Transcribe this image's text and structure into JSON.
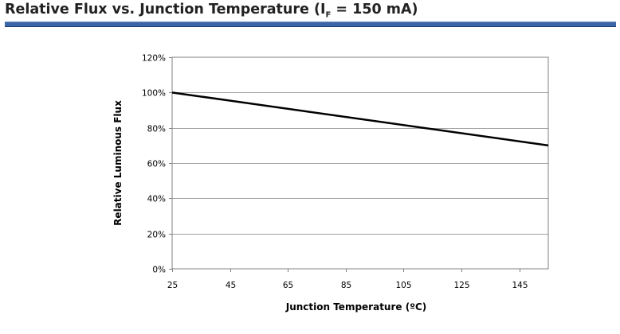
{
  "header": {
    "title_prefix": "Relative Flux vs. Junction Temperature (I",
    "title_subscript": "F",
    "title_suffix": " = 150 mA)",
    "rule_color": "#3b66a8"
  },
  "chart_data": {
    "type": "line",
    "title": "Relative Flux vs. Junction Temperature (IF = 150 mA)",
    "xlabel": "Junction Temperature (ºC)",
    "ylabel": "Relative Luminous Flux",
    "xlim": [
      25,
      155
    ],
    "ylim": [
      0,
      1.2
    ],
    "x_ticks": [
      "25",
      "45",
      "65",
      "85",
      "105",
      "125",
      "145"
    ],
    "x_tick_values": [
      25,
      45,
      65,
      85,
      105,
      125,
      145
    ],
    "y_ticks": [
      "0%",
      "20%",
      "40%",
      "60%",
      "80%",
      "100%",
      "120%"
    ],
    "y_tick_values": [
      0,
      0.2,
      0.4,
      0.6,
      0.8,
      1.0,
      1.2
    ],
    "grid": "horizontal",
    "series": [
      {
        "x": [
          25,
          155
        ],
        "y": [
          1.0,
          0.7
        ],
        "color": "#000000"
      }
    ]
  }
}
